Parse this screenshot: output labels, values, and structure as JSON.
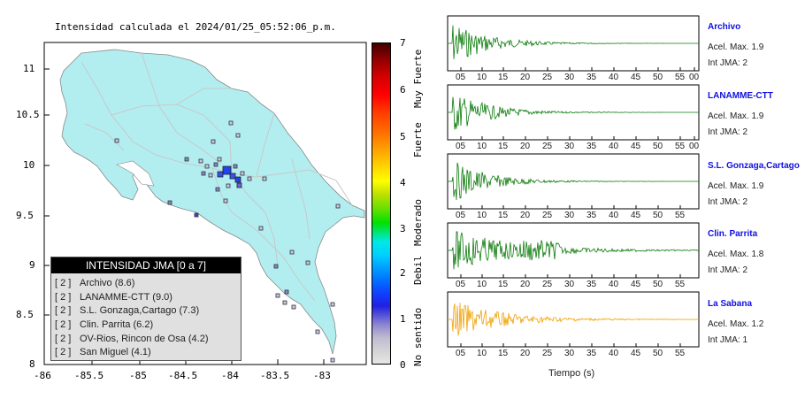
{
  "map": {
    "title": "Intensidad calculada el 2024/01/25_05:52:06_p.m.",
    "y_ticks": [
      "11",
      "10.5",
      "10",
      "9.5",
      "9",
      "8.5",
      "8"
    ],
    "x_ticks": [
      "-86",
      "-85.5",
      "-85",
      "-84.5",
      "-84",
      "-83.5",
      "-83"
    ]
  },
  "legend": {
    "title": "INTENSIDAD JMA [0 a 7]",
    "items": [
      {
        "intensity": "[ 2 ]",
        "label": "Archivo (8.6)"
      },
      {
        "intensity": "[ 2 ]",
        "label": "LANAMME-CTT (9.0)"
      },
      {
        "intensity": "[ 2 ]",
        "label": "S.L. Gonzaga,Cartago (7.3)"
      },
      {
        "intensity": "[ 2 ]",
        "label": "Clin. Parrita (6.2)"
      },
      {
        "intensity": "[ 2 ]",
        "label": "OV-Rios, Rincon de Osa (4.2)"
      },
      {
        "intensity": "[ 2 ]",
        "label": "San Miguel (4.1)"
      }
    ]
  },
  "colorbar": {
    "numbers": [
      "7",
      "6",
      "5",
      "4",
      "3",
      "2",
      "1",
      "0"
    ],
    "words": [
      "Muy Fuerte",
      "Fuerte",
      "Moderado",
      "Debil",
      "No sentido"
    ]
  },
  "stations": [
    {
      "name": "Archivo",
      "acel": "Acel. Max. 1.9",
      "int": "Int JMA: 2",
      "color": "#0a7a0a"
    },
    {
      "name": "LANAMME-CTT",
      "acel": "Acel. Max. 1.9",
      "int": "Int JMA: 2",
      "color": "#0a7a0a"
    },
    {
      "name": "S.L. Gonzaga,Cartago",
      "acel": "Acel. Max. 1.9",
      "int": "Int JMA: 2",
      "color": "#0a7a0a"
    },
    {
      "name": "Clin. Parrita",
      "acel": "Acel. Max. 1.8",
      "int": "Int JMA: 2",
      "color": "#0a7a0a"
    },
    {
      "name": "La Sabana",
      "acel": "Acel. Max. 1.2",
      "int": "Int JMA: 1",
      "color": "#f0a000"
    }
  ],
  "wave_ticks_a": [
    "05",
    "10",
    "15",
    "20",
    "25",
    "30",
    "35",
    "40",
    "45",
    "50",
    "55",
    "00"
  ],
  "wave_ticks_b": [
    "05",
    "10",
    "15",
    "20",
    "25",
    "30",
    "35",
    "40",
    "45",
    "50",
    "55"
  ],
  "xlabel": "Tiempo (s)"
}
